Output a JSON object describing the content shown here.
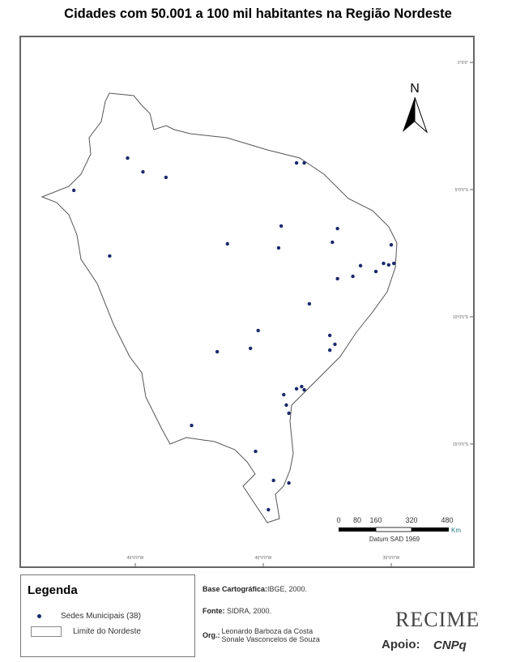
{
  "title": "Cidades com 50.001 a 100 mil habitantes na Região Nordeste",
  "map": {
    "north_label": "N",
    "graticule_lon": [
      "45°0'0\"W",
      "40°0'0\"W",
      "35°0'0\"W"
    ],
    "graticule_lat": [
      "0°0'0\"",
      "5°0'0\"S",
      "10°0'0\"S",
      "15°0'0\"S"
    ],
    "scale": {
      "ticks": [
        "0",
        "80",
        "160",
        "320",
        "480"
      ],
      "unit": "Km",
      "datum": "Datum SAD 1969"
    },
    "colors": {
      "points": "#1a2a6c",
      "outline": "#555555"
    },
    "points_lonlat": [
      [
        -47.4,
        -5.03
      ],
      [
        -45.3,
        -3.76
      ],
      [
        -44.7,
        -4.3
      ],
      [
        -43.8,
        -4.52
      ],
      [
        -46.0,
        -7.61
      ],
      [
        -41.4,
        -7.13
      ],
      [
        -39.3,
        -6.43
      ],
      [
        -39.4,
        -7.29
      ],
      [
        -38.7,
        -3.95
      ],
      [
        -38.4,
        -3.95
      ],
      [
        -37.1,
        -6.53
      ],
      [
        -37.3,
        -7.07
      ],
      [
        -37.1,
        -8.5
      ],
      [
        -36.5,
        -8.41
      ],
      [
        -36.2,
        -7.99
      ],
      [
        -35.6,
        -8.22
      ],
      [
        -35.3,
        -7.9
      ],
      [
        -35.1,
        -7.96
      ],
      [
        -34.9,
        -7.9
      ],
      [
        -35.0,
        -7.17
      ],
      [
        -38.2,
        -9.49
      ],
      [
        -40.2,
        -10.54
      ],
      [
        -40.5,
        -11.24
      ],
      [
        -41.8,
        -11.37
      ],
      [
        -37.4,
        -10.73
      ],
      [
        -37.2,
        -11.08
      ],
      [
        -37.4,
        -11.31
      ],
      [
        -39.2,
        -13.06
      ],
      [
        -38.7,
        -12.83
      ],
      [
        -38.5,
        -12.74
      ],
      [
        -38.4,
        -12.87
      ],
      [
        -39.1,
        -13.47
      ],
      [
        -42.8,
        -14.27
      ],
      [
        -40.3,
        -15.29
      ],
      [
        -39.6,
        -16.43
      ],
      [
        -39.0,
        -16.53
      ],
      [
        -39.8,
        -17.58
      ],
      [
        -39.0,
        -13.79
      ]
    ]
  },
  "legend": {
    "title": "Legenda",
    "points_label": "Sedes Municipais (38)",
    "boundary_label": "Limite do Nordeste"
  },
  "info": {
    "base_label": "Base Cartográfica:",
    "base_value": "IBGE, 2000.",
    "fonte_label": "Fonte:",
    "fonte_value": "SIDRA, 2000.",
    "org_label": "Org.:",
    "org_line1": "Leonardo Barboza da Costa",
    "org_line2": "Sonale Vasconcelos de Souza"
  },
  "logo": "RECIME",
  "apoio": "Apoio:",
  "cnpq": "CNPq"
}
